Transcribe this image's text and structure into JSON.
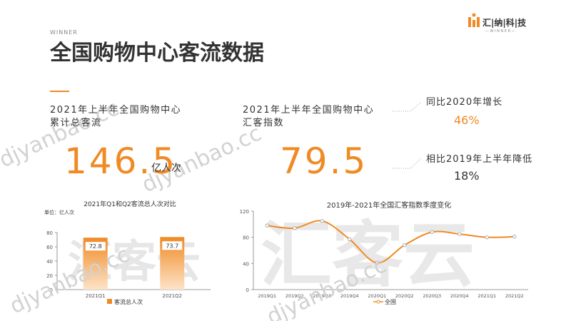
{
  "header": {
    "kicker": "WINNER",
    "title": "全国购物中心客流数据"
  },
  "logo": {
    "name": "汇|纳|科|技",
    "tag": "— W I N N E R —"
  },
  "watermark": {
    "site": "djyanbao.cc",
    "brand": "汇客云"
  },
  "stats": [
    {
      "label_lines": [
        "2021年上半年全国购物中心",
        "累计总客流"
      ],
      "value": "146.5",
      "unit": "亿人次"
    },
    {
      "label_lines": [
        "2021年上半年全国购物中心",
        "汇客指数"
      ],
      "value": "79.5"
    }
  ],
  "comparisons": [
    {
      "label": "同比2020年增长",
      "value": "46%"
    },
    {
      "label": "相比2019年上半年降低",
      "value": "18%"
    }
  ],
  "chart_data": [
    {
      "type": "bar",
      "title": "2021年Q1和Q2客流总人次对比",
      "unit_label": "单位：亿人次",
      "categories": [
        "2021Q1",
        "2021Q2"
      ],
      "series": [
        {
          "name": "客流总人次",
          "color": "#f08a24",
          "values": [
            72.8,
            73.7
          ]
        }
      ],
      "ylim": [
        0,
        80
      ],
      "yticks": [
        0,
        20,
        40,
        60,
        80
      ]
    },
    {
      "type": "line",
      "title": "2019年-2021年全国汇客指数季度变化",
      "categories": [
        "2019Q1",
        "2019Q2",
        "2019Q3",
        "2019Q4",
        "2020Q1",
        "2020Q2",
        "2020Q3",
        "2020Q4",
        "2021Q1",
        "2021Q2"
      ],
      "series": [
        {
          "name": "全国",
          "color": "#f08a24",
          "values": [
            98,
            94,
            105,
            77,
            41,
            68,
            88,
            85,
            80,
            81
          ]
        }
      ],
      "ylim": [
        0,
        120
      ],
      "yticks": [
        0,
        40,
        80,
        120
      ]
    }
  ]
}
